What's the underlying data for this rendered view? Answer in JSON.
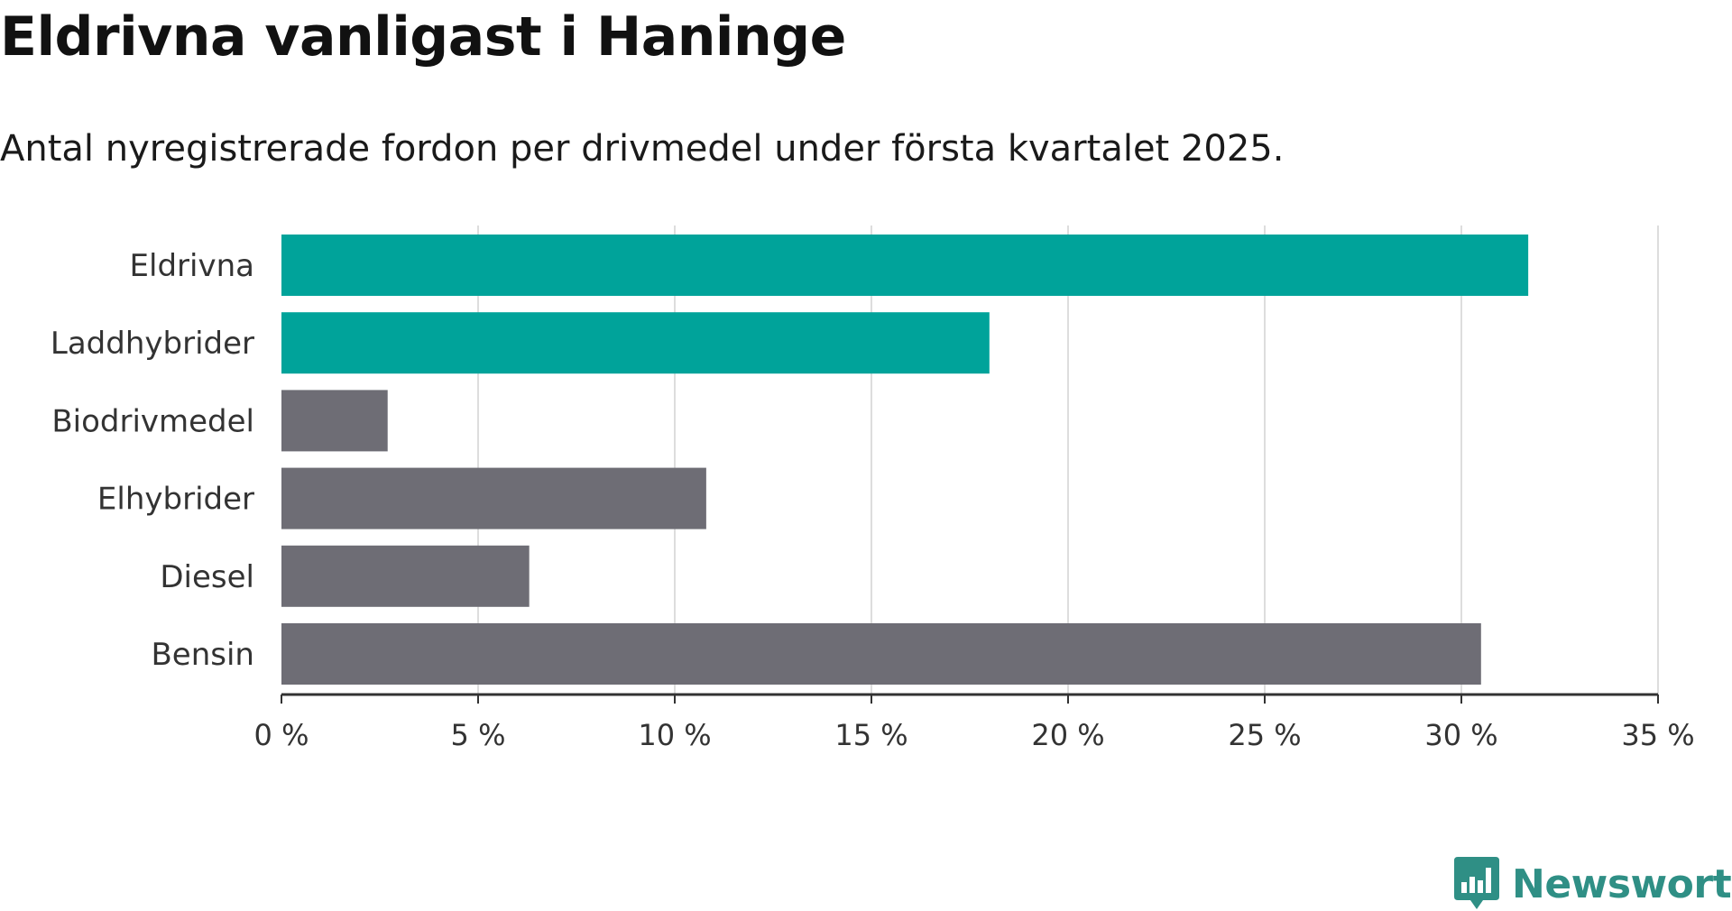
{
  "chart_data": {
    "type": "bar",
    "orientation": "horizontal",
    "title": "Eldrivna vanligast i Haninge",
    "subtitle": "Antal nyregistrerade fordon per drivmedel under första kvartalet 2025.",
    "categories": [
      "Eldrivna",
      "Laddhybrider",
      "Biodrivmedel",
      "Elhybrider",
      "Diesel",
      "Bensin"
    ],
    "values": [
      31.7,
      18.0,
      2.7,
      10.8,
      6.3,
      30.5
    ],
    "unit": "%",
    "xlim": [
      0,
      35
    ],
    "xticks": [
      0,
      5,
      10,
      15,
      20,
      25,
      30,
      35
    ],
    "xtick_labels": [
      "0 %",
      "5 %",
      "10 %",
      "15 %",
      "20 %",
      "25 %",
      "30 %",
      "35 %"
    ],
    "grid": true,
    "colors": {
      "highlight": "#00a39a",
      "default": "#6e6d75",
      "highlighted_categories": [
        "Eldrivna",
        "Laddhybrider"
      ]
    }
  },
  "brand": {
    "name": "Newsworthy",
    "icon": "bar-chart-speech-bubble-icon",
    "color": "#2f8f85"
  }
}
